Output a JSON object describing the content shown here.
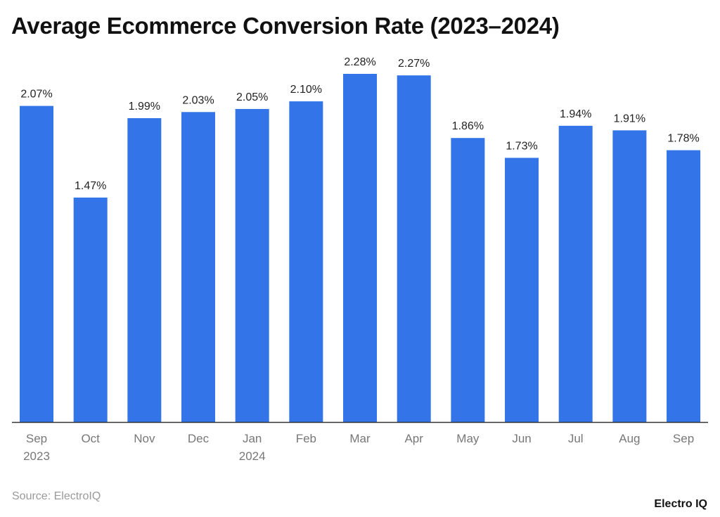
{
  "chart_data": {
    "type": "bar",
    "title": "Average Ecommerce Conversion Rate (2023–2024)",
    "categories": [
      "Sep 2023",
      "Oct",
      "Nov",
      "Dec",
      "Jan 2024",
      "Feb",
      "Mar",
      "Apr",
      "May",
      "Jun",
      "Jul",
      "Aug",
      "Sep"
    ],
    "category_lines": [
      [
        "Sep",
        "2023"
      ],
      [
        "Oct"
      ],
      [
        "Nov"
      ],
      [
        "Dec"
      ],
      [
        "Jan",
        "2024"
      ],
      [
        "Feb"
      ],
      [
        "Mar"
      ],
      [
        "Apr"
      ],
      [
        "May"
      ],
      [
        "Jun"
      ],
      [
        "Jul"
      ],
      [
        "Aug"
      ],
      [
        "Sep"
      ]
    ],
    "values": [
      2.07,
      1.47,
      1.99,
      2.03,
      2.05,
      2.1,
      2.28,
      2.27,
      1.86,
      1.73,
      1.94,
      1.91,
      1.78
    ],
    "labels": [
      "2.07%",
      "1.47%",
      "1.99%",
      "2.03%",
      "2.05%",
      "2.10%",
      "2.28%",
      "2.27%",
      "1.86%",
      "1.73%",
      "1.94%",
      "1.91%",
      "1.78%"
    ],
    "xlabel": "",
    "ylabel": "",
    "ylim": [
      0,
      2.28
    ],
    "grid": false,
    "bar_color": "#3375e8"
  },
  "source": "Source: ElectroIQ",
  "logo": "Electro IQ"
}
